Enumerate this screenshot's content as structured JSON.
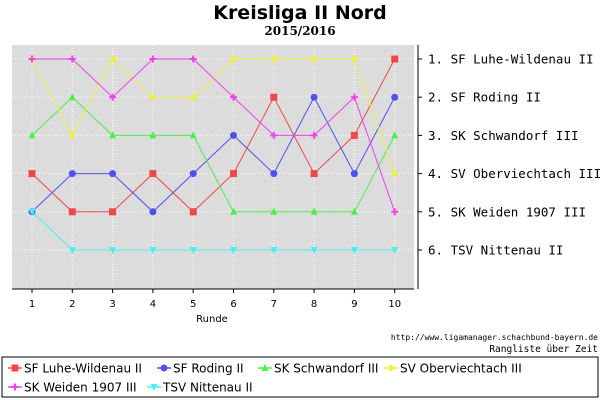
{
  "chart_data": {
    "type": "line",
    "title": "Kreisliga II Nord",
    "subtitle": "2015/2016",
    "xlabel": "Runde",
    "ylabel": "",
    "x": [
      1,
      2,
      3,
      4,
      5,
      6,
      7,
      8,
      9,
      10
    ],
    "ylim": [
      0.7,
      7
    ],
    "y_inverted": true,
    "grid": true,
    "standings": [
      "1. SF Luhe-Wildenau II",
      "2. SF Roding II",
      "3. SK Schwandorf III",
      "4. SV Oberviechtach III",
      "5. SK Weiden 1907 III",
      "6. TSV Nittenau II"
    ],
    "source_url": "http://www.ligamanager.schachbund-bayern.de",
    "footer_label": "Rangliste über Zeit",
    "legend_position": "bottom",
    "series": [
      {
        "name": "SF Luhe-Wildenau II",
        "color": "#f04848",
        "marker": "square",
        "values": [
          4,
          5,
          5,
          4,
          5,
          4,
          2,
          4,
          3,
          1
        ]
      },
      {
        "name": "SF Roding II",
        "color": "#5050f0",
        "marker": "circle",
        "values": [
          5,
          4,
          4,
          5,
          4,
          3,
          4,
          2,
          4,
          2
        ]
      },
      {
        "name": "SK Schwandorf III",
        "color": "#48f048",
        "marker": "triangle-up",
        "values": [
          3,
          2,
          3,
          3,
          3,
          5,
          5,
          5,
          5,
          3
        ]
      },
      {
        "name": "SV Oberviechtach III",
        "color": "#f0f040",
        "marker": "diamond",
        "values": [
          1,
          3,
          1,
          2,
          2,
          1,
          1,
          1,
          1,
          4
        ]
      },
      {
        "name": "SK Weiden 1907 III",
        "color": "#f040f0",
        "marker": "cross",
        "values": [
          1,
          1,
          2,
          1,
          1,
          2,
          3,
          3,
          2,
          5
        ]
      },
      {
        "name": "TSV Nittenau II",
        "color": "#48f0f0",
        "marker": "triangle-down",
        "values": [
          5,
          6,
          6,
          6,
          6,
          6,
          6,
          6,
          6,
          6
        ]
      }
    ]
  }
}
